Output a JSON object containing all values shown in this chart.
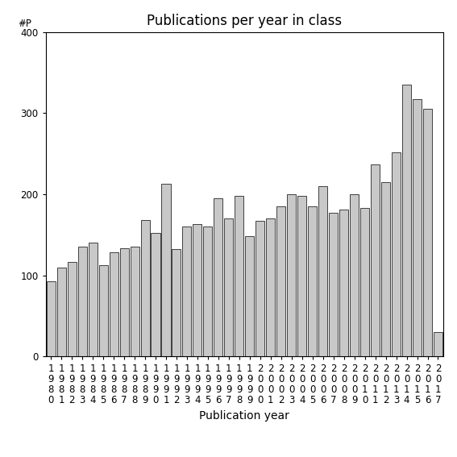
{
  "title": "Publications per year in class",
  "xlabel": "Publication year",
  "ylabel": "#P",
  "years": [
    "1980",
    "1981",
    "1982",
    "1983",
    "1984",
    "1985",
    "1986",
    "1987",
    "1988",
    "1989",
    "1990",
    "1991",
    "1992",
    "1993",
    "1994",
    "1995",
    "1996",
    "1997",
    "1998",
    "1999",
    "2000",
    "2001",
    "2002",
    "2003",
    "2004",
    "2005",
    "2006",
    "2007",
    "2008",
    "2009",
    "2010",
    "2011",
    "2012",
    "2013",
    "2014",
    "2015",
    "2016",
    "2017"
  ],
  "values": [
    93,
    110,
    117,
    135,
    140,
    113,
    128,
    133,
    135,
    168,
    152,
    213,
    132,
    160,
    163,
    160,
    195,
    170,
    198,
    148,
    167,
    170,
    185,
    200,
    198,
    185,
    210,
    177,
    181,
    200,
    183,
    237,
    215,
    252,
    335,
    317,
    305,
    30
  ],
  "bar_color": "#c8c8c8",
  "bar_edgecolor": "#000000",
  "ylim": [
    0,
    400
  ],
  "yticks": [
    0,
    100,
    200,
    300,
    400
  ],
  "background_color": "#ffffff",
  "title_fontsize": 12,
  "axis_fontsize": 10,
  "tick_fontsize": 8.5
}
